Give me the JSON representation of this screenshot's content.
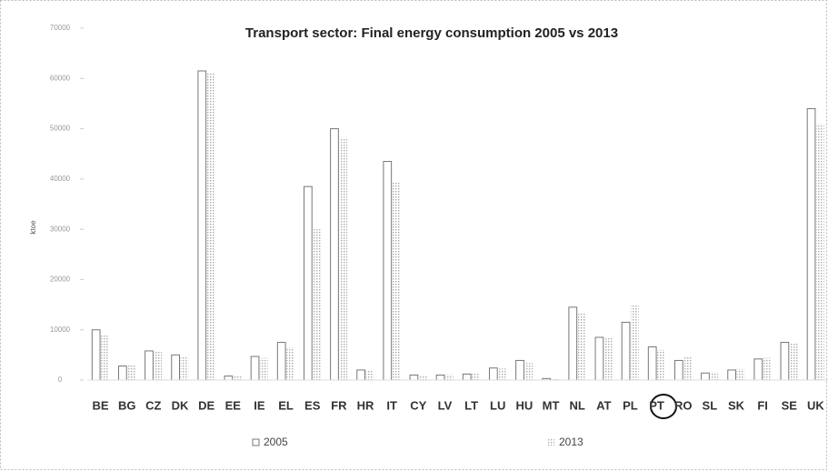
{
  "chart_data": {
    "type": "bar",
    "title": "Transport sector: Final energy consumption 2005 vs 2013",
    "y_label": "ktoe",
    "categories": [
      "BE",
      "BG",
      "CZ",
      "DK",
      "DE",
      "EE",
      "IE",
      "EL",
      "ES",
      "FR",
      "HR",
      "IT",
      "CY",
      "LV",
      "LT",
      "LU",
      "HU",
      "MT",
      "NL",
      "AT",
      "PL",
      "PT",
      "RO",
      "SL",
      "SK",
      "FI",
      "SE",
      "UK"
    ],
    "series": [
      {
        "name": "2005",
        "color": "#777777",
        "values": [
          10000,
          2800,
          5800,
          5000,
          61500,
          800,
          4700,
          7500,
          38500,
          50000,
          2000,
          43500,
          1000,
          1000,
          1200,
          2400,
          3900,
          300,
          14500,
          8500,
          11500,
          6600,
          3900,
          1400,
          2000,
          4200,
          7500,
          54000
        ]
      },
      {
        "name": "2013",
        "color": "#aaaaaa",
        "values": [
          9000,
          3000,
          5900,
          4800,
          61000,
          800,
          4400,
          6500,
          30000,
          48000,
          2100,
          39500,
          900,
          1100,
          1500,
          2300,
          3400,
          300,
          13500,
          8500,
          15000,
          6000,
          4600,
          1600,
          2200,
          4400,
          7400,
          51000
        ]
      }
    ],
    "ylim": [
      0,
      70000
    ],
    "yticks": [
      0,
      10000,
      20000,
      30000,
      40000,
      50000,
      60000,
      70000
    ],
    "grid": false
  }
}
